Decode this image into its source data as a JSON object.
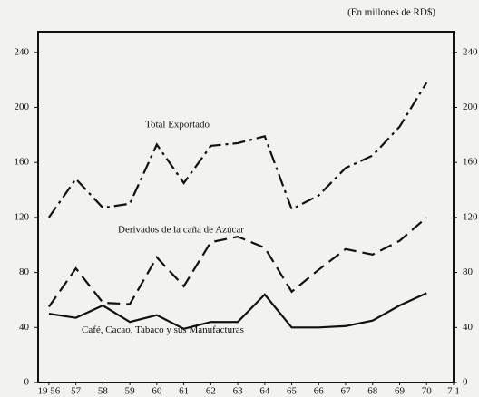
{
  "chart_data": {
    "type": "line",
    "subtitle": "(En millones de RD$)",
    "x": [
      1956,
      1957,
      1958,
      1959,
      1960,
      1961,
      1962,
      1963,
      1964,
      1965,
      1966,
      1967,
      1968,
      1969,
      1970
    ],
    "series": [
      {
        "name": "Total Exportado",
        "color": "#111111",
        "dash": "dashdot",
        "values": [
          120,
          148,
          127,
          130,
          173,
          145,
          172,
          174,
          179,
          126,
          136,
          156,
          165,
          186,
          218
        ]
      },
      {
        "name": "Derivados de la caña de Azúcar",
        "color": "#111111",
        "dash": "dashed",
        "values": [
          55,
          83,
          58,
          57,
          91,
          70,
          102,
          106,
          98,
          66,
          82,
          97,
          93,
          103,
          120
        ]
      },
      {
        "name": "Café, Cacao, Tabaco y sus Manufacturas",
        "color": "#111111",
        "dash": "solid",
        "values": [
          50,
          47,
          56,
          44,
          49,
          39,
          44,
          44,
          64,
          40,
          40,
          41,
          45,
          56,
          65
        ]
      }
    ],
    "xlim": [
      1955.6,
      1971
    ],
    "xticks": [
      {
        "value": 1956,
        "label": "19 56"
      },
      {
        "value": 1957,
        "label": "57"
      },
      {
        "value": 1958,
        "label": "58"
      },
      {
        "value": 1959,
        "label": "59"
      },
      {
        "value": 1960,
        "label": "60"
      },
      {
        "value": 1961,
        "label": "61"
      },
      {
        "value": 1962,
        "label": "62"
      },
      {
        "value": 1963,
        "label": "63"
      },
      {
        "value": 1964,
        "label": "64"
      },
      {
        "value": 1965,
        "label": "65"
      },
      {
        "value": 1966,
        "label": "66"
      },
      {
        "value": 1967,
        "label": "67"
      },
      {
        "value": 1968,
        "label": "68"
      },
      {
        "value": 1969,
        "label": "69"
      },
      {
        "value": 1970,
        "label": "70"
      },
      {
        "value": 1971,
        "label": "7 1"
      }
    ],
    "ylim": [
      0,
      255
    ],
    "yticks": [
      0,
      40,
      80,
      120,
      160,
      200,
      240
    ],
    "grid": false
  }
}
